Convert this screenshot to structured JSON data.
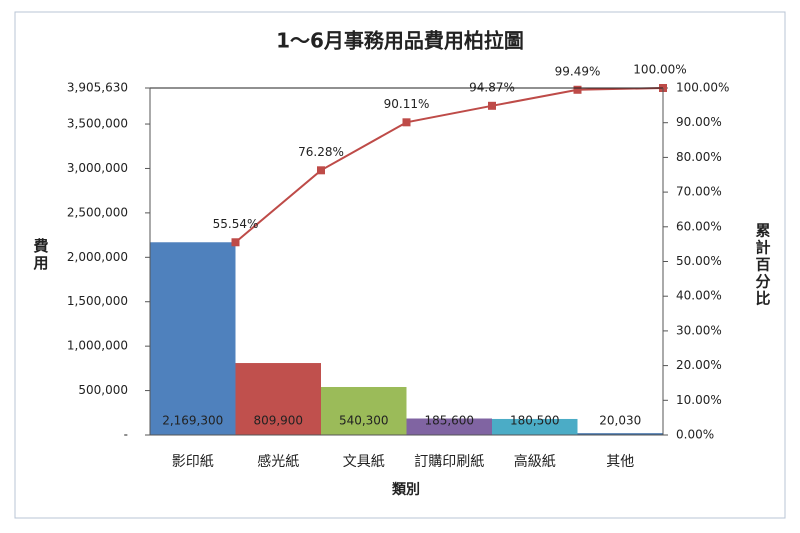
{
  "chart_data": {
    "type": "bar",
    "title": "1～6月事務用品費用柏拉圖",
    "x_label": "類別",
    "y_label": "費用",
    "y2_label": "累計百分比",
    "categories": [
      "影印紙",
      "感光紙",
      "文具紙",
      "訂購印刷紙",
      "高級紙",
      "其他"
    ],
    "series": [
      {
        "values": [
          2169300,
          809900,
          540300,
          185600,
          180500,
          20030
        ],
        "value_labels": [
          "2,169,300",
          "809,900",
          "540,300",
          "185,600",
          "180,500",
          "20,030"
        ],
        "colors": [
          "#4f81bd",
          "#c0504d",
          "#9bbb59",
          "#8064a2",
          "#4bacc6",
          "#3d6fa8"
        ]
      },
      {
        "axis": "y2",
        "values": [
          55.54,
          76.28,
          90.11,
          94.87,
          99.49,
          100.0
        ],
        "value_labels": [
          "55.54%",
          "76.28%",
          "90.11%",
          "94.87%",
          "99.49%",
          "100.00%"
        ],
        "color": "#be4b48"
      }
    ],
    "ylim": [
      0,
      3905630
    ],
    "yticks": [
      {
        "value": 0,
        "label": "-"
      },
      {
        "value": 500000,
        "label": "500,000"
      },
      {
        "value": 1000000,
        "label": "1,000,000"
      },
      {
        "value": 1500000,
        "label": "1,500,000"
      },
      {
        "value": 2000000,
        "label": "2,000,000"
      },
      {
        "value": 2500000,
        "label": "2,500,000"
      },
      {
        "value": 3000000,
        "label": "3,000,000"
      },
      {
        "value": 3500000,
        "label": "3,500,000"
      },
      {
        "value": 3905630,
        "label": "3,905,630"
      }
    ],
    "y2lim": [
      0,
      100
    ],
    "y2ticks": [
      {
        "value": 0,
        "label": "0.00%"
      },
      {
        "value": 10,
        "label": "10.00%"
      },
      {
        "value": 20,
        "label": "20.00%"
      },
      {
        "value": 30,
        "label": "30.00%"
      },
      {
        "value": 40,
        "label": "40.00%"
      },
      {
        "value": 50,
        "label": "50.00%"
      },
      {
        "value": 60,
        "label": "60.00%"
      },
      {
        "value": 70,
        "label": "70.00%"
      },
      {
        "value": 80,
        "label": "80.00%"
      },
      {
        "value": 90,
        "label": "90.00%"
      },
      {
        "value": 100,
        "label": "100.00%"
      }
    ]
  }
}
